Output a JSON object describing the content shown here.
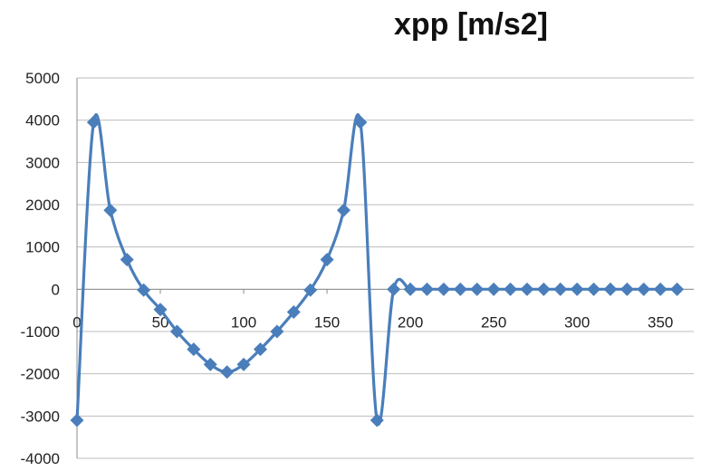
{
  "chart_data": {
    "type": "line",
    "title": "xpp [m/s2]",
    "xlabel": "",
    "ylabel": "",
    "xlim": [
      0,
      370
    ],
    "ylim": [
      -4000,
      5000
    ],
    "x_ticks": [
      "0",
      "50",
      "100",
      "150",
      "200",
      "250",
      "300",
      "350"
    ],
    "y_ticks": [
      "5000",
      "4000",
      "3000",
      "2000",
      "1000",
      "0",
      "-1000",
      "-2000",
      "-3000",
      "-4000"
    ],
    "grid": "horizontal",
    "legend": "none",
    "series": [
      {
        "marker": "diamond",
        "color": "#4a7ebb",
        "x": [
          0,
          10,
          20,
          30,
          40,
          50,
          60,
          70,
          80,
          90,
          100,
          110,
          120,
          130,
          140,
          150,
          160,
          170,
          180,
          190,
          200,
          210,
          220,
          230,
          240,
          250,
          260,
          270,
          280,
          290,
          300,
          310,
          320,
          330,
          340,
          350,
          360
        ],
        "y": [
          -3100,
          3950,
          1870,
          700,
          -20,
          -480,
          -1000,
          -1420,
          -1780,
          -1960,
          -1780,
          -1420,
          -1000,
          -540,
          -20,
          700,
          1870,
          3950,
          -3100,
          0,
          0,
          0,
          0,
          0,
          0,
          0,
          0,
          0,
          0,
          0,
          0,
          0,
          0,
          0,
          0,
          0,
          0
        ]
      }
    ]
  }
}
